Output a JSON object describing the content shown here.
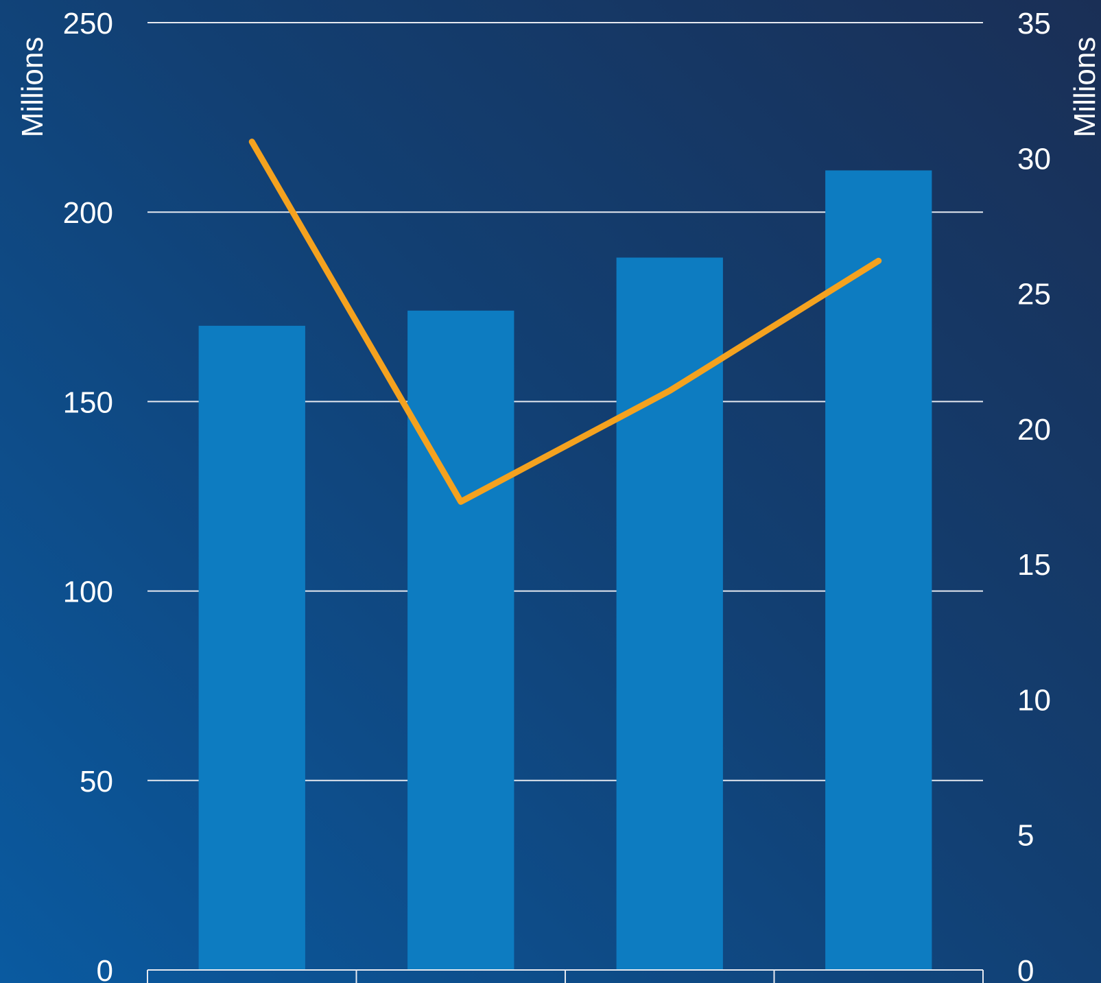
{
  "chart_data": {
    "type": "bar",
    "categories": [
      "",
      "",
      "",
      ""
    ],
    "series": [
      {
        "type": "bar",
        "axis": "left",
        "values": [
          170,
          174,
          188,
          211
        ]
      },
      {
        "type": "line",
        "axis": "right",
        "values": [
          30.6,
          17.3,
          21.4,
          26.2
        ]
      }
    ],
    "left_axis": {
      "label": "Millions",
      "ylim": [
        0,
        250
      ],
      "ticks": [
        0,
        50,
        100,
        150,
        200,
        250
      ]
    },
    "right_axis": {
      "label": "Millions",
      "ylim": [
        0,
        35
      ],
      "ticks": [
        0,
        5,
        10,
        15,
        20,
        25,
        30,
        35
      ]
    },
    "grid": true,
    "legend": "none",
    "colors": {
      "bar": "#0d7cc1",
      "line": "#f4a21f",
      "grid": "#e6e9f0",
      "text": "#ffffff"
    }
  }
}
